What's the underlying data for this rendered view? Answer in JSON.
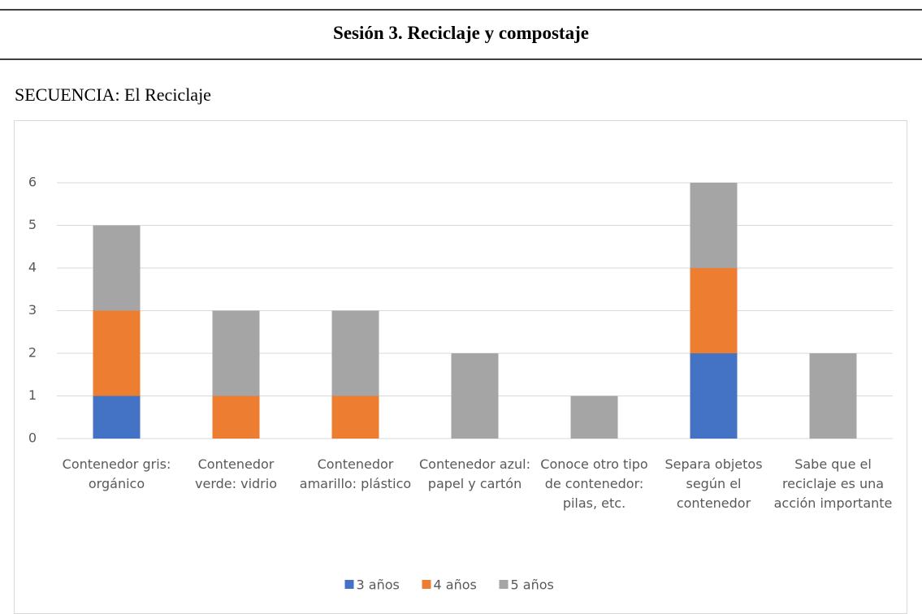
{
  "header": {
    "title": "Sesión 3. Reciclaje y compostaje"
  },
  "section": "SECUENCIA: El Reciclaje",
  "chart_data": {
    "type": "bar",
    "stacked": true,
    "categories": [
      "Contenedor gris: orgánico",
      "Contenedor verde: vidrio",
      "Contenedor amarillo: plástico",
      "Contenedor azul: papel y cartón",
      "Conoce otro tipo de contenedor: pilas, etc.",
      "Separa objetos según el contenedor",
      "Sabe que el reciclaje es una acción importante"
    ],
    "series": [
      {
        "name": "3 años",
        "color": "#4472c4",
        "values": [
          1,
          0,
          0,
          0,
          0,
          2,
          0
        ]
      },
      {
        "name": "4 años",
        "color": "#ed7d31",
        "values": [
          2,
          1,
          1,
          0,
          0,
          2,
          0
        ]
      },
      {
        "name": "5 años",
        "color": "#a5a5a5",
        "values": [
          2,
          2,
          2,
          2,
          1,
          2,
          2
        ]
      }
    ],
    "ylim": [
      0,
      6
    ],
    "yticks": [
      0,
      1,
      2,
      3,
      4,
      5,
      6
    ],
    "grid": true,
    "legend": "bottom"
  }
}
